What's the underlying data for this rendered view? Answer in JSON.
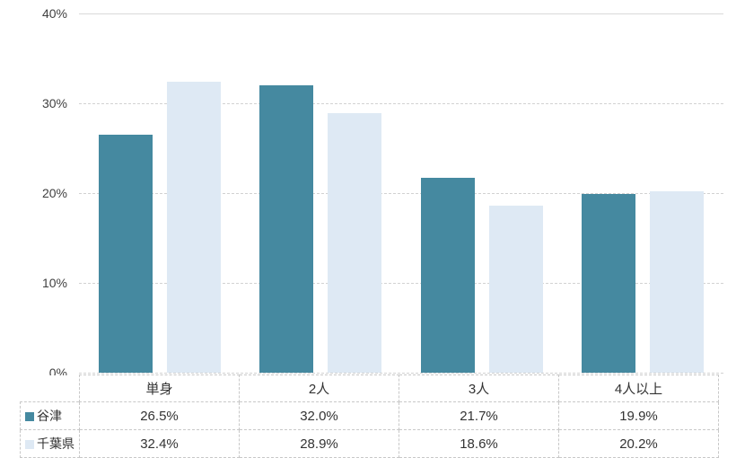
{
  "chart_data": {
    "type": "bar",
    "title": "",
    "categories": [
      "単身",
      "2人",
      "3人",
      "4人以上"
    ],
    "series": [
      {
        "name": "谷津",
        "color": "#4589a0",
        "values": [
          26.5,
          32.0,
          21.7,
          19.9
        ],
        "labels": [
          "26.5%",
          "32.0%",
          "21.7%",
          "19.9%"
        ]
      },
      {
        "name": "千葉県",
        "color": "#dee9f4",
        "values": [
          32.4,
          28.9,
          18.6,
          20.2
        ],
        "labels": [
          "32.4%",
          "28.9%",
          "18.6%",
          "20.2%"
        ]
      }
    ],
    "xlabel": "",
    "ylabel": "",
    "ylim": [
      0,
      40
    ],
    "yticks": [
      "40%",
      "30%",
      "20%",
      "10%",
      "0%"
    ],
    "grid": "horizontal, top line solid, rest dashed",
    "legend_position": "table-left-column",
    "grid_color": "#d9d9d9"
  }
}
